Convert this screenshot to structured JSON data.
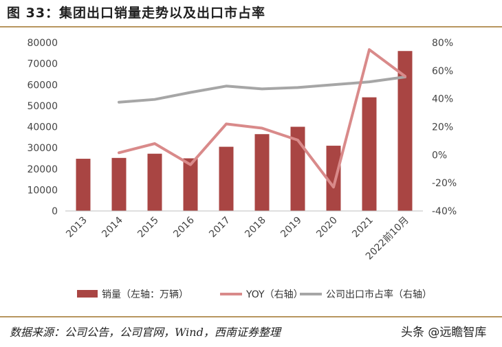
{
  "header": {
    "title": "图 33：集团出口销量走势以及出口市占率"
  },
  "footer": {
    "source": "数据来源：公司公告，公司官网，Wind，西南证券整理",
    "watermark": "头条 @远瞻智库"
  },
  "colors": {
    "bar": "#a94543",
    "yoy": "#d98a8a",
    "share": "#a6a6a6",
    "rule": "#b7955e"
  },
  "chart_data": {
    "type": "bar",
    "title": "集团出口销量走势以及出口市占率",
    "categories": [
      "2013",
      "2014",
      "2015",
      "2016",
      "2017",
      "2018",
      "2019",
      "2020",
      "2021",
      "2022前10月"
    ],
    "series": [
      {
        "name": "销量（左轴：万辆）",
        "type": "bar",
        "axis": "left",
        "values": [
          24800,
          25200,
          27200,
          25000,
          30500,
          36500,
          40000,
          31000,
          54000,
          76000
        ]
      },
      {
        "name": "YOY（右轴）",
        "type": "line",
        "axis": "right",
        "values": [
          null,
          1.5,
          8,
          -7,
          22,
          19,
          10.5,
          -23,
          75,
          56
        ]
      },
      {
        "name": "公司出口市占率（右轴）",
        "type": "line",
        "axis": "right",
        "values": [
          null,
          37.5,
          39.5,
          44.5,
          49,
          47,
          48,
          50,
          52,
          55.5
        ]
      }
    ],
    "left_axis": {
      "ylim": [
        0,
        80000
      ],
      "ticks": [
        "0",
        "10000",
        "20000",
        "30000",
        "40000",
        "50000",
        "60000",
        "70000",
        "80000"
      ]
    },
    "right_axis": {
      "ylim": [
        -40,
        80
      ],
      "ticks": [
        "-40%",
        "-20%",
        "0%",
        "20%",
        "40%",
        "60%",
        "80%"
      ]
    },
    "legend": {
      "position": "bottom",
      "entries": [
        "销量（左轴：万辆）",
        "YOY（右轴）",
        "公司出口市占率（右轴）"
      ]
    }
  }
}
